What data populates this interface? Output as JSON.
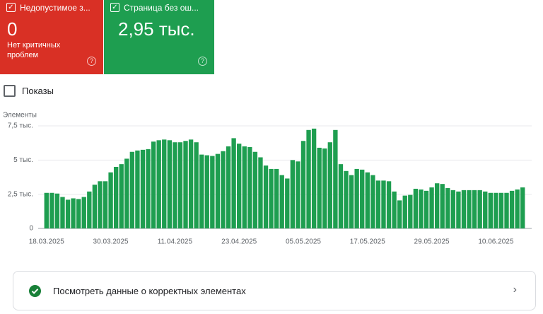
{
  "cards": [
    {
      "label": "Недопустимое з...",
      "value": "0",
      "note": "Нет критичных проблем"
    },
    {
      "label": "Страница без ош...",
      "value": "2,95 тыс."
    }
  ],
  "toggle": "Показы",
  "chart_data": {
    "type": "bar",
    "y_label": "Элементы",
    "color": "#1e9e50",
    "grid": true,
    "ylim": [
      0,
      7500
    ],
    "yticks": [
      0,
      {
        "value": 2500,
        "label": "2,5 тыс."
      },
      {
        "value": 5000,
        "label": "5 тыс."
      },
      {
        "value": 7500,
        "label": "7,5 тыс."
      }
    ],
    "categories": [
      "18.03.2025",
      null,
      null,
      null,
      null,
      null,
      null,
      null,
      null,
      null,
      null,
      null,
      "30.03.2025",
      null,
      null,
      null,
      null,
      null,
      null,
      null,
      null,
      null,
      null,
      null,
      "11.04.2025",
      null,
      null,
      null,
      null,
      null,
      null,
      null,
      null,
      null,
      null,
      null,
      "23.04.2025",
      null,
      null,
      null,
      null,
      null,
      null,
      null,
      null,
      null,
      null,
      null,
      "05.05.2025",
      null,
      null,
      null,
      null,
      null,
      null,
      null,
      null,
      null,
      null,
      null,
      "17.05.2025",
      null,
      null,
      null,
      null,
      null,
      null,
      null,
      null,
      null,
      null,
      null,
      "29.05.2025",
      null,
      null,
      null,
      null,
      null,
      null,
      null,
      null,
      null,
      null,
      null,
      "10.06.2025",
      null,
      null,
      null,
      null,
      null
    ],
    "values": [
      2600,
      2600,
      2550,
      2300,
      2100,
      2200,
      2150,
      2300,
      2700,
      3200,
      3450,
      3450,
      4100,
      4500,
      4700,
      5100,
      5600,
      5700,
      5750,
      5800,
      6350,
      6450,
      6500,
      6450,
      6300,
      6300,
      6400,
      6500,
      6300,
      5400,
      5350,
      5300,
      5450,
      5650,
      6000,
      6600,
      6200,
      6000,
      5950,
      5600,
      5200,
      4600,
      4350,
      4350,
      3900,
      3650,
      5000,
      4900,
      6400,
      7200,
      7300,
      5900,
      5850,
      6300,
      7200,
      4700,
      4200,
      3900,
      4350,
      4300,
      4100,
      3900,
      3500,
      3500,
      3450,
      2700,
      2050,
      2400,
      2450,
      2900,
      2850,
      2750,
      3000,
      3300,
      3250,
      2950,
      2800,
      2700,
      2800,
      2800,
      2800,
      2800,
      2700,
      2600,
      2600,
      2600,
      2600,
      2750,
      2850,
      3000
    ]
  },
  "link": "Посмотреть данные о корректных элементах"
}
